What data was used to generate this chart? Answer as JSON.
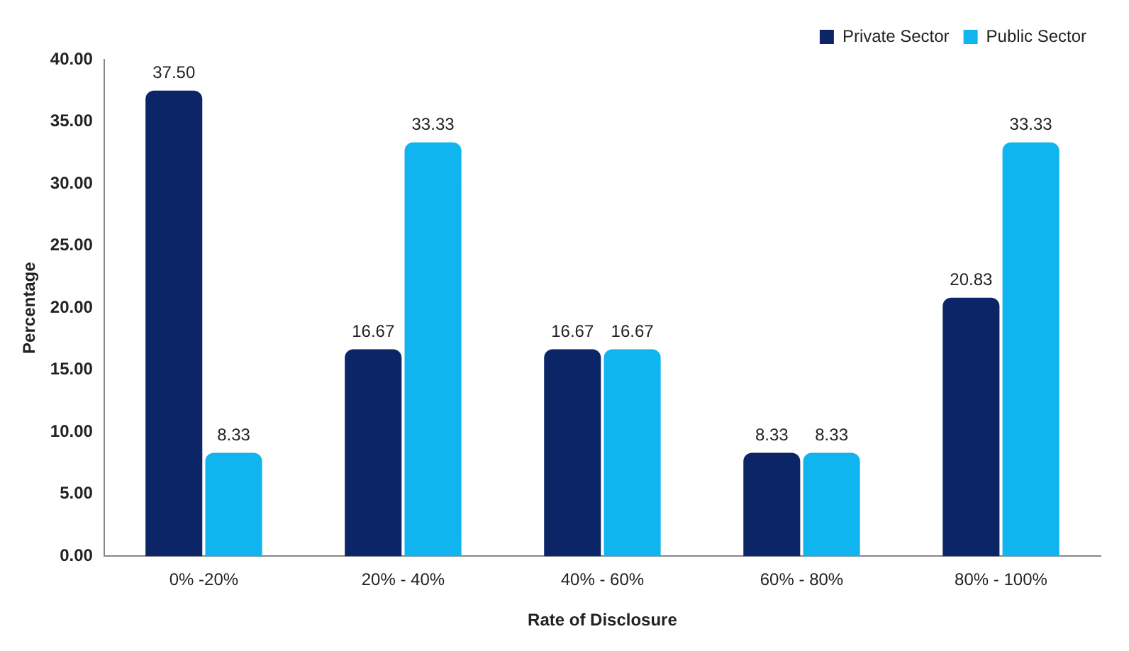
{
  "chart_data": {
    "type": "bar",
    "xlabel": "Rate of Disclosure",
    "ylabel": "Percentage",
    "categories": [
      "0% -20%",
      "20% - 40%",
      "40% - 60%",
      "60% - 80%",
      "80% - 100%"
    ],
    "series": [
      {
        "name": "Private Sector",
        "color": "#0b2566",
        "values": [
          37.5,
          16.67,
          16.67,
          8.33,
          20.83
        ],
        "value_labels": [
          "37.50",
          "16.67",
          "16.67",
          "8.33",
          "20.83"
        ]
      },
      {
        "name": "Public Sector",
        "color": "#10b4ee",
        "values": [
          8.33,
          33.33,
          16.67,
          8.33,
          33.33
        ],
        "value_labels": [
          "8.33",
          "33.33",
          "16.67",
          "8.33",
          "33.33"
        ]
      }
    ],
    "ylim": [
      0,
      40
    ],
    "yticks": [
      {
        "value": 0,
        "label": "0.00"
      },
      {
        "value": 5,
        "label": "5.00"
      },
      {
        "value": 10,
        "label": "10.00"
      },
      {
        "value": 15,
        "label": "15.00"
      },
      {
        "value": 20,
        "label": "20.00"
      },
      {
        "value": 25,
        "label": "25.00"
      },
      {
        "value": 30,
        "label": "30.00"
      },
      {
        "value": 35,
        "label": "35.00"
      },
      {
        "value": 40,
        "label": "40.00"
      }
    ],
    "grid": false,
    "legend": "top right"
  }
}
